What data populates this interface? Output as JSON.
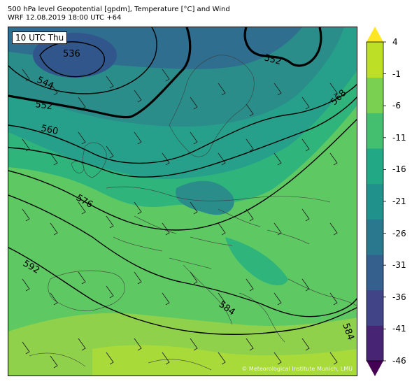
{
  "title": {
    "line1": "500 hPa level Geopotential [gpdm], Temperature [°C] and Wind",
    "line2": "WRF 12.08.2019 18:00 UTC +64"
  },
  "map": {
    "time_label": "10 UTC Thu",
    "copyright": "© Meteorological Institute Munich, LMU",
    "contour_labels": [
      "536",
      "544",
      "552",
      "552",
      "560",
      "568",
      "576",
      "584",
      "584",
      "592"
    ]
  },
  "colorbar": {
    "tick_labels": [
      "4",
      "-1",
      "-6",
      "-11",
      "-16",
      "-21",
      "-26",
      "-31",
      "-36",
      "-41",
      "-46"
    ],
    "colors": [
      "#440154",
      "#482475",
      "#414487",
      "#355f8d",
      "#2a788e",
      "#21918c",
      "#22a884",
      "#44bf70",
      "#7ad151",
      "#bddf26",
      "#fde725"
    ]
  }
}
